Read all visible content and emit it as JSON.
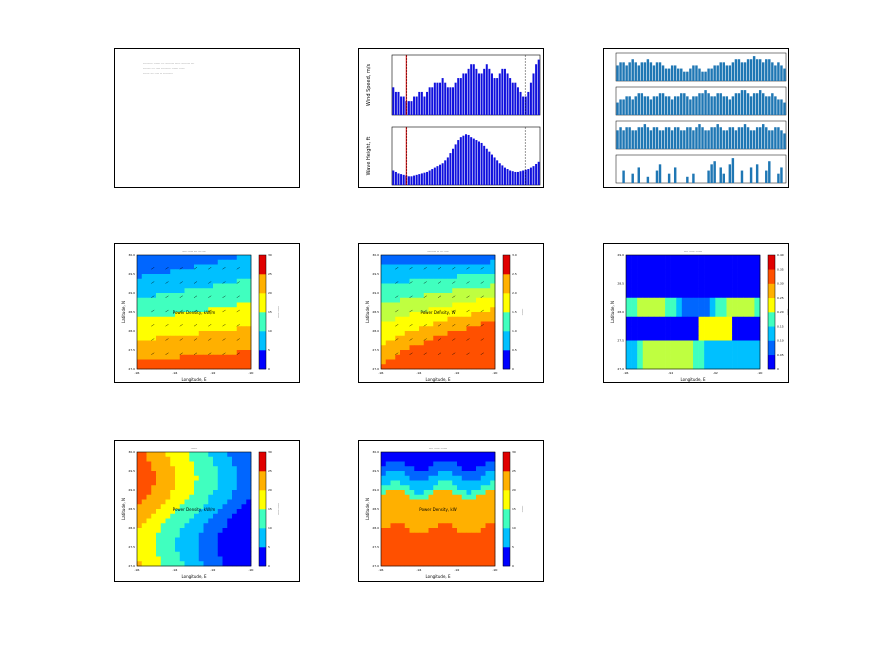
{
  "figure": {
    "note_lines": [
      "--------- ------ --- -------- ----- -------- ---",
      "------- --- ---- --------- ------ -----",
      "------ --- ---- -- ---------"
    ]
  },
  "chart_data": [
    {
      "id": "wind-wave-bars",
      "type": "bar",
      "panels": [
        {
          "ylabel": "Wind Speed, m/s",
          "values": [
            6,
            5,
            5,
            4,
            4,
            3,
            3,
            3,
            4,
            4,
            5,
            5,
            4,
            5,
            6,
            6,
            7,
            7,
            7,
            8,
            7,
            6,
            6,
            6,
            7,
            8,
            8,
            9,
            9,
            10,
            11,
            11,
            10,
            9,
            9,
            10,
            11,
            10,
            9,
            8,
            8,
            9,
            10,
            10,
            9,
            8,
            7,
            7,
            6,
            5,
            4,
            4,
            5,
            7,
            9,
            11,
            12
          ],
          "ylim": [
            0,
            13
          ]
        },
        {
          "ylabel": "Wave Height, ft",
          "values": [
            2.0,
            1.8,
            1.6,
            1.5,
            1.4,
            1.3,
            1.2,
            1.2,
            1.3,
            1.4,
            1.5,
            1.6,
            1.7,
            1.8,
            2.0,
            2.2,
            2.4,
            2.6,
            2.8,
            3.0,
            3.4,
            3.8,
            4.4,
            5.0,
            5.6,
            6.2,
            6.6,
            6.8,
            7.0,
            6.9,
            6.6,
            6.4,
            6.2,
            6.0,
            5.8,
            5.4,
            5.0,
            4.6,
            4.2,
            3.8,
            3.4,
            3.0,
            2.7,
            2.4,
            2.2,
            2.0,
            1.9,
            1.8,
            1.8,
            1.9,
            2.0,
            2.1,
            2.2,
            2.4,
            2.6,
            2.9,
            3.2
          ],
          "ylim": [
            0,
            8
          ]
        }
      ],
      "marker_index": 5,
      "color": "#1010dd",
      "marker_color": "#dd0000"
    },
    {
      "id": "quad-bars",
      "type": "bar",
      "color": "#1f77b4",
      "panels": [
        {
          "values": [
            5,
            6,
            6,
            5,
            6,
            7,
            6,
            5,
            6,
            6,
            7,
            6,
            5,
            6,
            6,
            5,
            4,
            4,
            5,
            5,
            4,
            4,
            3,
            3,
            4,
            5,
            5,
            4,
            3,
            3,
            4,
            4,
            5,
            5,
            6,
            6,
            5,
            5,
            6,
            7,
            7,
            6,
            6,
            7,
            7,
            8,
            7,
            7,
            6,
            7,
            7,
            6,
            5,
            6,
            5,
            4
          ],
          "ylim": [
            0,
            9
          ]
        },
        {
          "values": [
            4,
            5,
            5,
            6,
            6,
            5,
            6,
            7,
            7,
            6,
            6,
            5,
            6,
            6,
            7,
            7,
            6,
            6,
            5,
            6,
            6,
            7,
            7,
            6,
            5,
            6,
            6,
            7,
            7,
            8,
            7,
            6,
            6,
            7,
            7,
            6,
            6,
            5,
            6,
            7,
            7,
            8,
            8,
            7,
            6,
            7,
            7,
            8,
            7,
            6,
            6,
            7,
            6,
            5,
            5,
            4
          ],
          "ylim": [
            0,
            9
          ]
        },
        {
          "values": [
            6,
            7,
            6,
            7,
            7,
            6,
            6,
            7,
            7,
            8,
            7,
            6,
            7,
            7,
            6,
            6,
            7,
            7,
            6,
            7,
            7,
            6,
            6,
            7,
            7,
            6,
            7,
            8,
            7,
            6,
            6,
            7,
            7,
            8,
            7,
            6,
            6,
            7,
            7,
            6,
            7,
            7,
            8,
            7,
            6,
            6,
            7,
            7,
            8,
            7,
            6,
            6,
            7,
            7,
            6,
            5
          ],
          "ylim": [
            0,
            9
          ]
        },
        {
          "values": [
            0,
            0,
            4,
            0,
            0,
            3,
            0,
            5,
            0,
            0,
            2,
            0,
            0,
            4,
            6,
            0,
            0,
            3,
            0,
            5,
            0,
            0,
            0,
            2,
            0,
            3,
            0,
            0,
            0,
            0,
            4,
            6,
            7,
            0,
            5,
            3,
            0,
            6,
            8,
            0,
            0,
            4,
            0,
            0,
            5,
            0,
            6,
            0,
            0,
            4,
            7,
            0,
            0,
            3,
            5,
            0
          ],
          "ylim": [
            0,
            9
          ]
        }
      ]
    },
    {
      "id": "contour-1",
      "type": "heatmap",
      "title": "---- ----- --- --- ---",
      "xlabel": "Longitude, E",
      "ylabel": "Latitude, N",
      "annotation": "Power Density, kW/m",
      "cbar_label": "----- -----",
      "xticks": [
        "-96",
        "-94",
        "-92",
        "-90"
      ],
      "yticks": [
        "27.0",
        "27.5",
        "28.0",
        "28.5",
        "29.0",
        "29.5",
        "30.0"
      ],
      "cticks": [
        "0",
        "5",
        "10",
        "15",
        "20",
        "25",
        "30"
      ],
      "levels": 7
    },
    {
      "id": "contour-2",
      "type": "heatmap",
      "title": "-------- -- --- ----",
      "xlabel": "Longitude, E",
      "ylabel": "Latitude, N",
      "annotation": "Power Density, W",
      "cbar_label": "------",
      "xticks": [
        "-96",
        "-94",
        "-92",
        "-90"
      ],
      "yticks": [
        "27.0",
        "27.5",
        "28.0",
        "28.5",
        "29.0",
        "29.5",
        "30.0"
      ],
      "cticks": [
        "0",
        "0.5",
        "1.0",
        "1.5",
        "2.0",
        "2.5",
        "3.0"
      ],
      "levels": 8
    },
    {
      "id": "contour-3",
      "type": "heatmap",
      "title": "---- ----- ------",
      "xlabel": "Longitude, E",
      "ylabel": "Latitude, N",
      "cbar_label": "------",
      "xticks": [
        "-96",
        "-94",
        "-92",
        "-90"
      ],
      "yticks": [
        "27.0",
        "27.5",
        "28.0",
        "28.5",
        "29.0"
      ],
      "cticks": [
        "0",
        "0.05",
        "0.10",
        "0.15",
        "0.20",
        "0.25",
        "0.30",
        "0.35",
        "0.40"
      ],
      "levels": 9
    },
    {
      "id": "contour-4",
      "type": "heatmap",
      "title": "------",
      "xlabel": "Longitude, E",
      "ylabel": "Latitude, N",
      "annotation": "Power Density, kW/m",
      "cbar_label": "----- -----",
      "xticks": [
        "-96",
        "-94",
        "-92",
        "-90"
      ],
      "yticks": [
        "27.0",
        "27.5",
        "28.0",
        "28.5",
        "29.0",
        "29.5",
        "30.0"
      ],
      "cticks": [
        "0",
        "5",
        "10",
        "15",
        "20",
        "25",
        "30"
      ],
      "levels": 7
    },
    {
      "id": "contour-5",
      "type": "heatmap",
      "title": "---- ----- ------",
      "xlabel": "Longitude, E",
      "ylabel": "Latitude, N",
      "annotation": "Power Density, kW",
      "cbar_label": "------",
      "xticks": [
        "-96",
        "-94",
        "-92",
        "-90"
      ],
      "yticks": [
        "27.0",
        "27.5",
        "28.0",
        "28.5",
        "29.0",
        "29.5",
        "30.0"
      ],
      "cticks": [
        "0",
        "5",
        "10",
        "15",
        "20",
        "25",
        "30"
      ],
      "levels": 7
    }
  ]
}
